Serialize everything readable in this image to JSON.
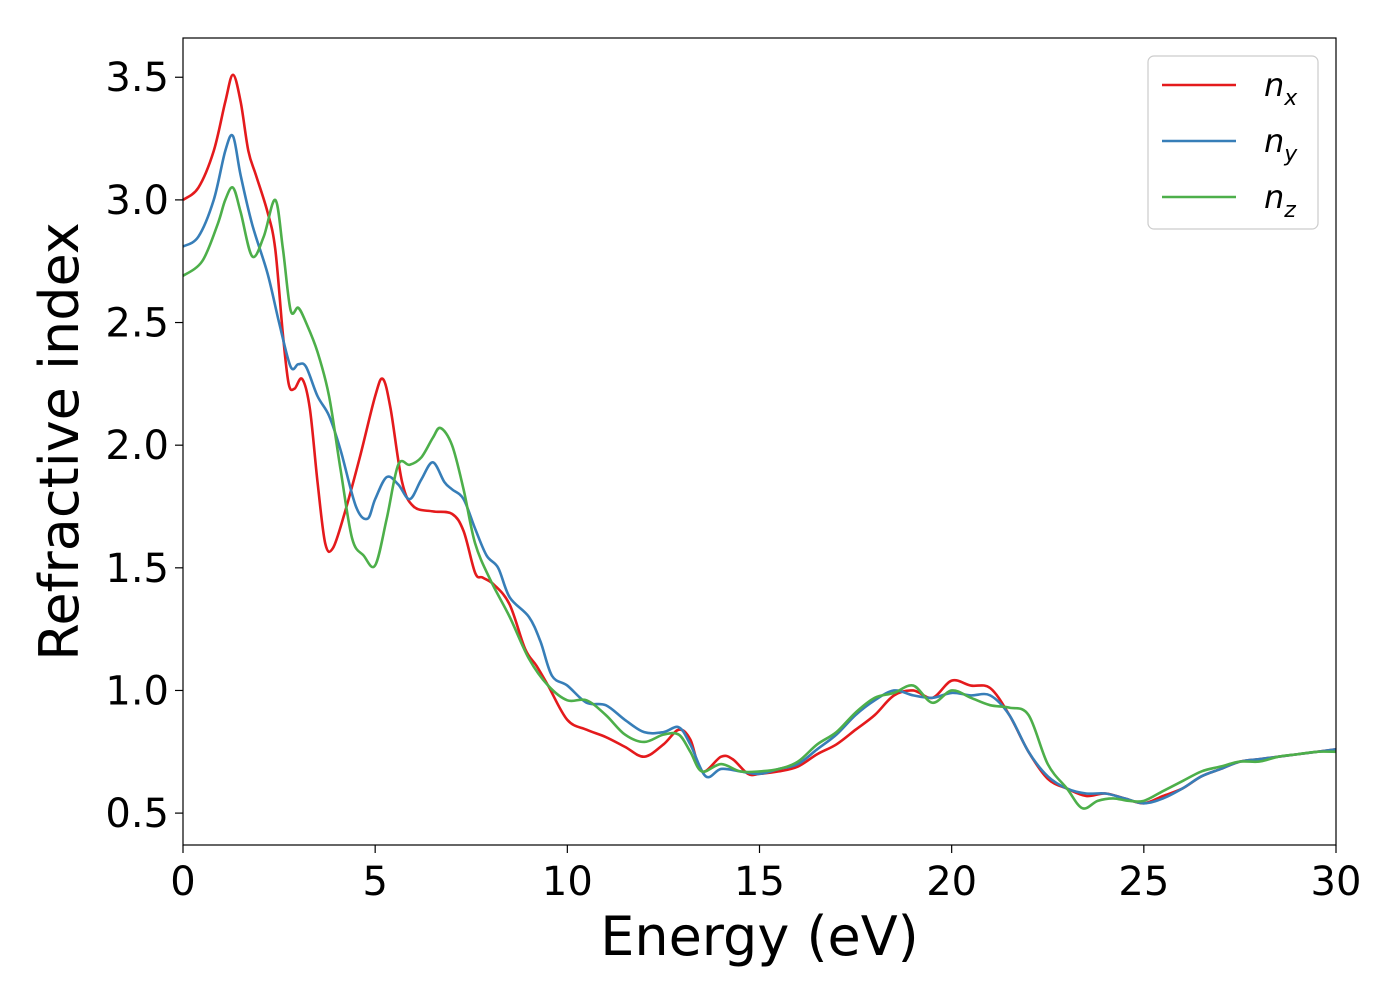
{
  "chart_data": {
    "type": "line",
    "xlabel": "Energy (eV)",
    "ylabel": "Refractive index",
    "xlim": [
      0,
      30
    ],
    "ylim": [
      0.37,
      3.66
    ],
    "x_ticks": [
      0,
      5,
      10,
      15,
      20,
      25,
      30
    ],
    "x_tick_labels": [
      "0",
      "5",
      "10",
      "15",
      "20",
      "25",
      "30"
    ],
    "y_ticks": [
      0.5,
      1.0,
      1.5,
      2.0,
      2.5,
      3.0,
      3.5
    ],
    "y_tick_labels": [
      "0.5",
      "1.0",
      "1.5",
      "2.0",
      "2.5",
      "3.0",
      "3.5"
    ],
    "grid": false,
    "legend_position": "top-right",
    "series": [
      {
        "name": "n",
        "sub": "x",
        "color": "#e41a1c",
        "x": [
          0,
          0.4,
          0.8,
          1.1,
          1.3,
          1.5,
          1.7,
          1.9,
          2.2,
          2.4,
          2.6,
          2.75,
          2.9,
          3.1,
          3.3,
          3.5,
          3.7,
          3.9,
          4.2,
          4.6,
          5.0,
          5.2,
          5.4,
          5.7,
          6.0,
          6.5,
          7.0,
          7.3,
          7.6,
          7.8,
          8.1,
          8.5,
          8.9,
          9.2,
          9.5,
          10.0,
          10.5,
          11.0,
          11.5,
          12.0,
          12.5,
          12.9,
          13.2,
          13.5,
          14.0,
          14.3,
          14.7,
          15.0,
          15.5,
          16.0,
          16.5,
          17.0,
          17.5,
          18.0,
          18.5,
          19.0,
          19.5,
          20.0,
          20.5,
          21.0,
          21.5,
          22.0,
          22.5,
          23.0,
          23.5,
          24.0,
          24.5,
          25.0,
          25.5,
          26.0,
          26.5,
          27.0,
          27.5,
          28.0,
          28.5,
          29.0,
          29.5,
          30.0
        ],
        "y": [
          3.0,
          3.05,
          3.2,
          3.4,
          3.51,
          3.4,
          3.2,
          3.1,
          2.95,
          2.8,
          2.45,
          2.25,
          2.23,
          2.27,
          2.15,
          1.85,
          1.6,
          1.58,
          1.72,
          1.95,
          2.2,
          2.27,
          2.15,
          1.85,
          1.75,
          1.73,
          1.72,
          1.65,
          1.48,
          1.46,
          1.43,
          1.35,
          1.17,
          1.1,
          1.02,
          0.88,
          0.84,
          0.81,
          0.77,
          0.73,
          0.78,
          0.84,
          0.8,
          0.67,
          0.73,
          0.72,
          0.66,
          0.66,
          0.67,
          0.69,
          0.74,
          0.78,
          0.84,
          0.9,
          0.98,
          1.0,
          0.97,
          1.04,
          1.02,
          1.01,
          0.9,
          0.75,
          0.64,
          0.6,
          0.57,
          0.58,
          0.56,
          0.54,
          0.57,
          0.6,
          0.65,
          0.68,
          0.71,
          0.72,
          0.73,
          0.74,
          0.75,
          0.76
        ]
      },
      {
        "name": "n",
        "sub": "y",
        "color": "#377eb8",
        "x": [
          0,
          0.4,
          0.8,
          1.1,
          1.3,
          1.5,
          1.8,
          2.2,
          2.5,
          2.8,
          3.0,
          3.2,
          3.5,
          3.8,
          4.1,
          4.5,
          4.8,
          5.0,
          5.3,
          5.6,
          5.9,
          6.2,
          6.5,
          6.8,
          7.0,
          7.3,
          7.6,
          7.9,
          8.2,
          8.5,
          9.0,
          9.3,
          9.6,
          10.0,
          10.5,
          11.0,
          11.5,
          12.0,
          12.5,
          12.9,
          13.2,
          13.6,
          14.0,
          14.5,
          15.0,
          15.5,
          16.0,
          16.5,
          17.0,
          17.5,
          18.0,
          18.5,
          19.0,
          19.5,
          20.0,
          20.5,
          21.0,
          21.5,
          22.0,
          22.5,
          23.0,
          23.5,
          24.0,
          24.5,
          25.0,
          25.5,
          26.0,
          26.5,
          27.0,
          27.5,
          28.0,
          28.5,
          29.0,
          29.5,
          30.0
        ],
        "y": [
          2.81,
          2.85,
          3.0,
          3.2,
          3.26,
          3.1,
          2.9,
          2.7,
          2.5,
          2.32,
          2.33,
          2.32,
          2.2,
          2.12,
          1.98,
          1.75,
          1.7,
          1.78,
          1.87,
          1.84,
          1.78,
          1.86,
          1.93,
          1.85,
          1.82,
          1.78,
          1.66,
          1.55,
          1.5,
          1.38,
          1.3,
          1.2,
          1.06,
          1.02,
          0.95,
          0.94,
          0.88,
          0.83,
          0.83,
          0.85,
          0.78,
          0.65,
          0.68,
          0.67,
          0.66,
          0.68,
          0.7,
          0.76,
          0.82,
          0.9,
          0.96,
          1.0,
          0.98,
          0.97,
          0.99,
          0.98,
          0.98,
          0.9,
          0.75,
          0.65,
          0.6,
          0.58,
          0.58,
          0.56,
          0.54,
          0.56,
          0.6,
          0.65,
          0.68,
          0.71,
          0.72,
          0.73,
          0.74,
          0.75,
          0.76
        ]
      },
      {
        "name": "n",
        "sub": "z",
        "color": "#4daf4a",
        "x": [
          0,
          0.5,
          0.9,
          1.1,
          1.3,
          1.5,
          1.8,
          2.1,
          2.4,
          2.6,
          2.8,
          3.0,
          3.2,
          3.5,
          3.8,
          4.1,
          4.4,
          4.7,
          5.0,
          5.3,
          5.6,
          5.9,
          6.2,
          6.5,
          6.7,
          7.0,
          7.3,
          7.6,
          8.0,
          8.5,
          9.0,
          9.5,
          10.0,
          10.5,
          11.0,
          11.5,
          12.0,
          12.5,
          12.9,
          13.2,
          13.5,
          14.0,
          14.5,
          15.0,
          15.5,
          16.0,
          16.5,
          17.0,
          17.5,
          18.0,
          18.5,
          19.0,
          19.5,
          20.0,
          20.5,
          21.0,
          21.5,
          22.0,
          22.5,
          23.0,
          23.4,
          23.8,
          24.2,
          24.6,
          25.0,
          25.5,
          26.0,
          26.5,
          27.0,
          27.5,
          28.0,
          28.5,
          29.0,
          29.5,
          30.0
        ],
        "y": [
          2.69,
          2.75,
          2.9,
          3.0,
          3.05,
          2.95,
          2.77,
          2.85,
          3.0,
          2.8,
          2.55,
          2.56,
          2.5,
          2.38,
          2.2,
          1.9,
          1.62,
          1.55,
          1.51,
          1.7,
          1.92,
          1.92,
          1.95,
          2.03,
          2.07,
          2.0,
          1.82,
          1.6,
          1.45,
          1.3,
          1.13,
          1.02,
          0.96,
          0.96,
          0.9,
          0.82,
          0.79,
          0.82,
          0.82,
          0.75,
          0.67,
          0.7,
          0.67,
          0.67,
          0.68,
          0.71,
          0.78,
          0.83,
          0.91,
          0.97,
          0.99,
          1.02,
          0.95,
          1.0,
          0.97,
          0.94,
          0.93,
          0.9,
          0.7,
          0.6,
          0.52,
          0.55,
          0.56,
          0.55,
          0.55,
          0.59,
          0.63,
          0.67,
          0.69,
          0.71,
          0.71,
          0.73,
          0.74,
          0.75,
          0.75
        ]
      }
    ]
  }
}
